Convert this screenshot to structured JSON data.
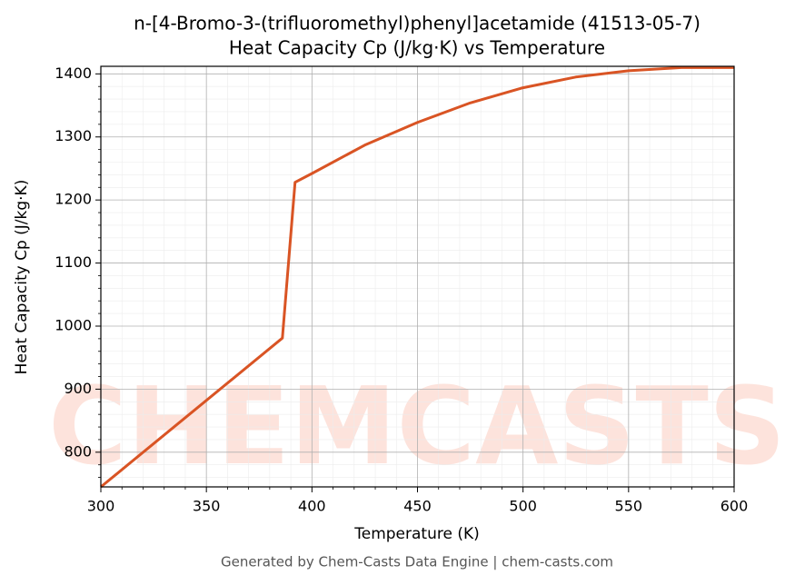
{
  "chart_data": {
    "type": "line",
    "title": "n-[4-Bromo-3-(trifluoromethyl)phenyl]acetamide (41513-05-7)",
    "subtitle": "Heat Capacity Cp (J/kg·K) vs Temperature",
    "x_label": "Temperature (K)",
    "y_label": "Heat Capacity Cp (J/kg·K)",
    "watermark": "CHEMCASTS",
    "footer": "Generated by Chem-Casts Data Engine | chem-casts.com",
    "x": [
      300,
      386,
      392,
      400,
      425,
      450,
      475,
      500,
      525,
      550,
      575,
      600
    ],
    "series": [
      {
        "name": "Heat Capacity Cp",
        "color": "#d95424",
        "values": [
          745,
          981,
          1228,
          1242,
          1287,
          1323,
          1354,
          1378,
          1395,
          1405,
          1410,
          1410
        ]
      }
    ],
    "xlim": [
      300,
      600
    ],
    "ylim": [
      745,
      1412
    ],
    "xticks": [
      300,
      350,
      400,
      450,
      500,
      550,
      600
    ],
    "yticks": [
      800,
      900,
      1000,
      1100,
      1200,
      1300,
      1400
    ],
    "grid": true,
    "minor_grid": true,
    "legend": false
  }
}
